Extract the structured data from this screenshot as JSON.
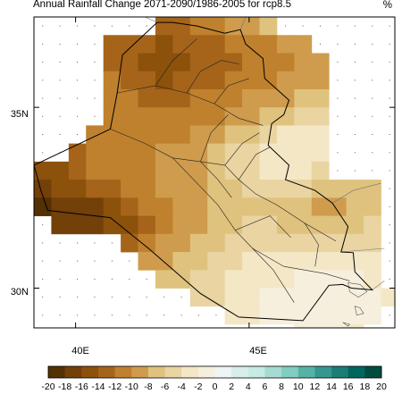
{
  "title": "Annual Rainfall Change 2071-2090/1986-2005 for rcp8.5",
  "unit": "%",
  "chart_data": {
    "type": "heatmap",
    "title": "Annual Rainfall Change 2071-2090/1986-2005 for rcp8.5",
    "unit": "%",
    "x_range": [
      38.8,
      49.2
    ],
    "y_range": [
      28.9,
      37.5
    ],
    "x_ticks": [
      {
        "value": 40,
        "label": "40E"
      },
      {
        "value": 45,
        "label": "45E"
      }
    ],
    "y_ticks": [
      {
        "value": 30,
        "label": "30N"
      },
      {
        "value": 35,
        "label": "35N"
      }
    ],
    "grid_origin": {
      "lon": 38.8,
      "lat": 37.5
    },
    "cell_size_deg": 0.5,
    "color_levels": [
      -20,
      -18,
      -16,
      -14,
      -12,
      -10,
      -8,
      -6,
      -4,
      -2,
      0,
      2,
      4,
      6,
      8,
      10,
      12,
      14,
      16,
      18,
      20
    ],
    "colorbar_labels": [
      "-20",
      "-18",
      "-16",
      "-14",
      "-12",
      "-10",
      "-8",
      "-6",
      "-4",
      "-2",
      "0",
      "2",
      "4",
      "6",
      "8",
      "10",
      "12",
      "14",
      "16",
      "18",
      "20"
    ],
    "colorbar_colors": [
      "#543005",
      "#734009",
      "#8c510a",
      "#a5641a",
      "#bf812d",
      "#cf9b4d",
      "#dfc27d",
      "#e9d4a2",
      "#f3e7c5",
      "#f6efde",
      "#eef5f5",
      "#d8eeeb",
      "#c7eae5",
      "#a5dbd2",
      "#80cdc1",
      "#57b2a6",
      "#35978f",
      "#1a7e76",
      "#01665e",
      "#004d40"
    ],
    "grid_rows": [
      {
        "lat": 37.5,
        "start": 7,
        "values": [
          -14,
          -14,
          -12,
          -12,
          -10,
          -10,
          -8
        ]
      },
      {
        "lat": 37.0,
        "start": 4,
        "values": [
          -13,
          -13,
          -14,
          -15,
          -14,
          -14,
          -13,
          -12,
          -12,
          -11,
          -10,
          -9
        ]
      },
      {
        "lat": 36.5,
        "start": 4,
        "values": [
          -13,
          -14,
          -15,
          -15,
          -15,
          -14,
          -14,
          -13,
          -12,
          -12,
          -11,
          -10,
          -10
        ]
      },
      {
        "lat": 36.0,
        "start": 4,
        "values": [
          -12,
          -13,
          -14,
          -15,
          -14,
          -13,
          -13,
          -12,
          -12,
          -11,
          -10,
          -10,
          -9
        ]
      },
      {
        "lat": 35.5,
        "start": 4,
        "values": [
          -12,
          -12,
          -13,
          -13,
          -13,
          -12,
          -12,
          -11,
          -10,
          -10,
          -9,
          -8,
          -7
        ]
      },
      {
        "lat": 35.0,
        "start": 4,
        "values": [
          -11,
          -11,
          -12,
          -12,
          -12,
          -11,
          -11,
          -10,
          -9,
          -8,
          -7,
          -6,
          -6
        ]
      },
      {
        "lat": 34.5,
        "start": 3,
        "values": [
          -12,
          -11,
          -11,
          -11,
          -11,
          -11,
          -10,
          -9,
          -8,
          -7,
          -5,
          -4,
          -4,
          -4
        ]
      },
      {
        "lat": 34.0,
        "start": 2,
        "values": [
          -13,
          -12,
          -11,
          -11,
          -11,
          -10,
          -10,
          -9,
          -8,
          -6,
          -5,
          -4,
          -4,
          -3,
          -4
        ]
      },
      {
        "lat": 33.5,
        "start": 0,
        "values": [
          -16,
          -15,
          -13,
          -12,
          -11,
          -11,
          -11,
          -10,
          -10,
          -9,
          -8,
          -6,
          -5,
          -4,
          -4,
          -4,
          -5
        ]
      },
      {
        "lat": 33.0,
        "start": 0,
        "values": [
          -17,
          -16,
          -15,
          -14,
          -13,
          -12,
          -11,
          -10,
          -10,
          -9,
          -8,
          -7,
          -6,
          -5,
          -5,
          -6,
          -7,
          -8,
          -8,
          -7
        ]
      },
      {
        "lat": 32.5,
        "start": 0,
        "values": [
          -19,
          -18,
          -18,
          -17,
          -16,
          -14,
          -12,
          -11,
          -10,
          -9,
          -8,
          -8,
          -7,
          -7,
          -8,
          -8,
          -9,
          -9,
          -8,
          -7
        ]
      },
      {
        "lat": 32.0,
        "start": 1,
        "values": [
          -18,
          -18,
          -17,
          -16,
          -15,
          -14,
          -12,
          -10,
          -9,
          -8,
          -7,
          -6,
          -6,
          -7,
          -7,
          -8,
          -8,
          -7,
          -6
        ]
      },
      {
        "lat": 31.5,
        "start": 5,
        "values": [
          -13,
          -12,
          -10,
          -9,
          -8,
          -7,
          -6,
          -5,
          -5,
          -6,
          -6,
          -6,
          -5,
          -5,
          -5
        ]
      },
      {
        "lat": 31.0,
        "start": 6,
        "values": [
          -10,
          -9,
          -8,
          -7,
          -6,
          -5,
          -4,
          -4,
          -4,
          -4,
          -4,
          -4,
          -3,
          -3
        ]
      },
      {
        "lat": 30.5,
        "start": 7,
        "values": [
          -8,
          -7,
          -6,
          -5,
          -4,
          -3,
          -3,
          -3,
          -2,
          -2,
          -2,
          -2,
          -3
        ]
      },
      {
        "lat": 30.0,
        "start": 9,
        "values": [
          -6,
          -5,
          -4,
          -3,
          -2,
          -1,
          -1,
          -1,
          -2,
          -2,
          -2,
          -3
        ]
      },
      {
        "lat": 29.5,
        "start": 11,
        "values": [
          -4,
          -3,
          -2,
          -1,
          -1,
          -1,
          -2,
          -2,
          -2
        ]
      },
      {
        "lat": 29.0,
        "start": 15,
        "values": [
          -2,
          -2,
          -2,
          -3
        ]
      }
    ],
    "iraq_outline": [
      [
        42.35,
        37.35
      ],
      [
        42.8,
        37.35
      ],
      [
        43.5,
        37.25
      ],
      [
        44.3,
        37.05
      ],
      [
        44.75,
        37.15
      ],
      [
        44.9,
        36.75
      ],
      [
        45.4,
        36.35
      ],
      [
        45.45,
        35.8
      ],
      [
        46.15,
        35.2
      ],
      [
        46.0,
        34.8
      ],
      [
        45.65,
        34.55
      ],
      [
        45.55,
        33.95
      ],
      [
        46.15,
        33.4
      ],
      [
        46.05,
        33.0
      ],
      [
        46.9,
        32.7
      ],
      [
        47.4,
        32.35
      ],
      [
        47.85,
        31.7
      ],
      [
        47.65,
        31.0
      ],
      [
        48.0,
        30.98
      ],
      [
        48.05,
        30.45
      ],
      [
        48.55,
        29.95
      ],
      [
        47.95,
        30.0
      ],
      [
        47.7,
        30.1
      ],
      [
        47.3,
        30.08
      ],
      [
        46.55,
        29.1
      ],
      [
        44.7,
        29.2
      ],
      [
        43.6,
        29.85
      ],
      [
        42.1,
        31.1
      ],
      [
        41.0,
        31.95
      ],
      [
        39.2,
        32.15
      ],
      [
        39.0,
        32.7
      ],
      [
        38.8,
        33.4
      ],
      [
        41.0,
        34.4
      ],
      [
        41.2,
        35.4
      ],
      [
        41.35,
        36.45
      ],
      [
        42.35,
        37.35
      ]
    ],
    "internal_boundaries": [
      [
        [
          41.2,
          35.4
        ],
        [
          42.3,
          35.6
        ],
        [
          43.2,
          35.4
        ],
        [
          44.0,
          35.1
        ],
        [
          44.7,
          34.7
        ],
        [
          45.4,
          34.5
        ]
      ],
      [
        [
          41.0,
          34.4
        ],
        [
          42.0,
          34.0
        ],
        [
          42.8,
          33.6
        ],
        [
          43.6,
          33.5
        ],
        [
          44.3,
          33.4
        ]
      ],
      [
        [
          42.3,
          35.6
        ],
        [
          42.8,
          36.3
        ],
        [
          43.5,
          36.9
        ]
      ],
      [
        [
          43.2,
          35.4
        ],
        [
          43.6,
          36.0
        ],
        [
          44.2,
          36.3
        ],
        [
          44.7,
          36.2
        ]
      ],
      [
        [
          44.0,
          35.1
        ],
        [
          44.4,
          35.6
        ],
        [
          45.0,
          35.8
        ]
      ],
      [
        [
          44.3,
          33.4
        ],
        [
          44.7,
          33.0
        ],
        [
          45.2,
          32.6
        ],
        [
          45.8,
          32.3
        ],
        [
          46.6,
          31.8
        ],
        [
          47.5,
          31.3
        ]
      ],
      [
        [
          42.8,
          33.6
        ],
        [
          43.5,
          32.9
        ],
        [
          44.1,
          32.3
        ],
        [
          44.6,
          31.6
        ],
        [
          45.1,
          31.1
        ],
        [
          46.0,
          30.6
        ],
        [
          47.2,
          30.4
        ],
        [
          47.9,
          30.2
        ]
      ],
      [
        [
          43.6,
          33.5
        ],
        [
          44.1,
          33.0
        ],
        [
          44.5,
          32.5
        ]
      ],
      [
        [
          44.7,
          33.0
        ],
        [
          45.2,
          33.7
        ],
        [
          45.6,
          33.9
        ]
      ],
      [
        [
          44.6,
          31.6
        ],
        [
          45.6,
          32.0
        ],
        [
          46.2,
          31.4
        ]
      ],
      [
        [
          45.1,
          31.1
        ],
        [
          45.7,
          30.5
        ],
        [
          46.3,
          29.6
        ]
      ],
      [
        [
          46.6,
          31.8
        ],
        [
          47.0,
          31.2
        ],
        [
          46.9,
          30.6
        ]
      ],
      [
        [
          44.3,
          33.4
        ],
        [
          44.8,
          34.0
        ],
        [
          45.3,
          34.3
        ]
      ],
      [
        [
          43.6,
          33.5
        ],
        [
          43.9,
          34.3
        ],
        [
          44.4,
          34.8
        ]
      ]
    ],
    "neighbor_lines": [
      [
        [
          42.35,
          37.35
        ],
        [
          42.0,
          37.5
        ]
      ],
      [
        [
          44.75,
          37.15
        ],
        [
          44.9,
          37.5
        ]
      ],
      [
        [
          47.4,
          32.35
        ],
        [
          48.0,
          32.7
        ],
        [
          48.8,
          32.9
        ]
      ],
      [
        [
          47.65,
          31.0
        ],
        [
          48.9,
          31.1
        ]
      ],
      [
        [
          48.55,
          29.95
        ],
        [
          48.9,
          30.2
        ]
      ],
      [
        [
          38.8,
          33.4
        ],
        [
          38.8,
          32.2
        ]
      ]
    ],
    "islands": [
      [
        [
          47.85,
          30.15
        ],
        [
          48.2,
          30.1
        ],
        [
          48.4,
          29.9
        ],
        [
          48.15,
          29.75
        ],
        [
          47.9,
          29.9
        ],
        [
          47.85,
          30.15
        ]
      ],
      [
        [
          48.05,
          29.5
        ],
        [
          48.2,
          29.45
        ],
        [
          48.3,
          29.3
        ],
        [
          48.1,
          29.25
        ],
        [
          48.05,
          29.5
        ]
      ],
      [
        [
          47.7,
          29.05
        ],
        [
          47.9,
          29.0
        ],
        [
          47.85,
          28.95
        ],
        [
          47.7,
          29.05
        ]
      ]
    ]
  }
}
